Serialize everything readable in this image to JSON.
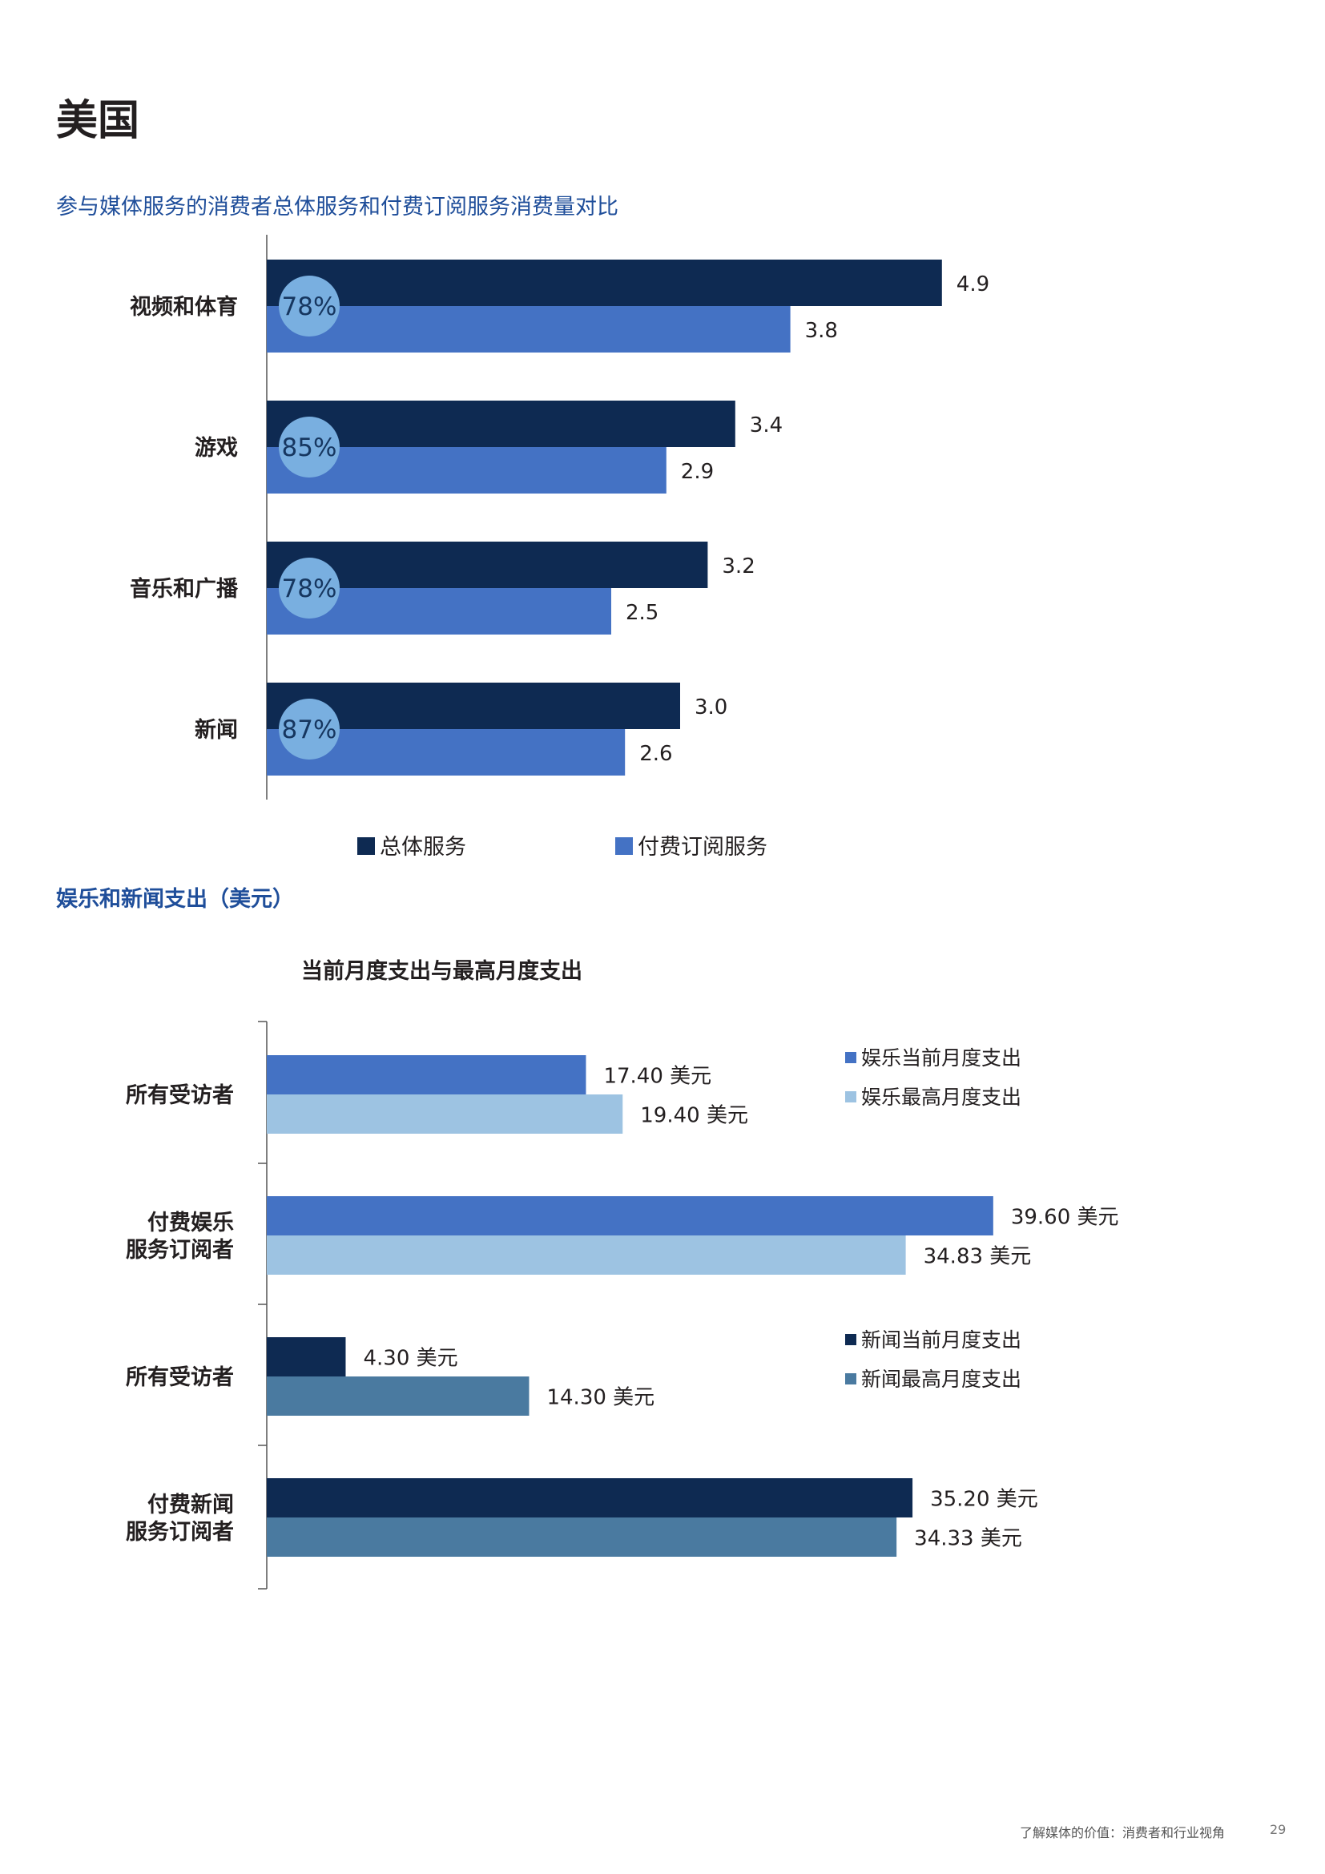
{
  "page": {
    "title": "美国",
    "footer": "了解媒体的价值：消费者和行业视角",
    "page_number": "29"
  },
  "chart1": {
    "section_title": "参与媒体服务的消费者总体服务和付费订阅服务消费量对比"
  },
  "chart2": {
    "section_title": "娱乐和新闻支出（美元）",
    "subtitle": "当前月度支出与最高月度支出"
  },
  "chart_data": [
    {
      "type": "bar",
      "orientation": "horizontal",
      "title": "参与媒体服务的消费者总体服务和付费订阅服务消费量对比",
      "categories": [
        "视频和体育",
        "游戏",
        "音乐和广播",
        "新闻"
      ],
      "series": [
        {
          "name": "总体服务",
          "values": [
            4.9,
            3.4,
            3.2,
            3.0
          ],
          "labels": [
            "4.9",
            "3.4",
            "3.2",
            "3.0"
          ],
          "color": "#0e2a52"
        },
        {
          "name": "付费订阅服务",
          "values": [
            3.8,
            2.9,
            2.5,
            2.6
          ],
          "labels": [
            "3.8",
            "2.9",
            "2.5",
            "2.6"
          ],
          "color": "#4472c4"
        }
      ],
      "annotations": [
        "78%",
        "85%",
        "78%",
        "87%"
      ],
      "annotation_color": "#79afe0",
      "xlim": [
        0,
        5
      ],
      "legend": [
        "总体服务",
        "付费订阅服务"
      ],
      "legend_position": "bottom"
    },
    {
      "type": "bar",
      "orientation": "horizontal",
      "title": "当前月度支出与最高月度支出",
      "groups": [
        {
          "label": [
            "所有受访者"
          ],
          "bars": [
            {
              "value": 17.4,
              "label": "17.40 美元",
              "color": "#4472c4"
            },
            {
              "value": 19.4,
              "label": "19.40 美元",
              "color": "#9dc3e2"
            }
          ]
        },
        {
          "label": [
            "付费娱乐",
            "服务订阅者"
          ],
          "bars": [
            {
              "value": 39.6,
              "label": "39.60 美元",
              "color": "#4472c4"
            },
            {
              "value": 34.83,
              "label": "34.83 美元",
              "color": "#9dc3e2"
            }
          ]
        },
        {
          "label": [
            "所有受访者"
          ],
          "bars": [
            {
              "value": 4.3,
              "label": "4.30 美元",
              "color": "#0e2a52"
            },
            {
              "value": 14.3,
              "label": "14.30 美元",
              "color": "#4a7aa0"
            }
          ]
        },
        {
          "label": [
            "付费新闻",
            "服务订阅者"
          ],
          "bars": [
            {
              "value": 35.2,
              "label": "35.20 美元",
              "color": "#0e2a52"
            },
            {
              "value": 34.33,
              "label": "34.33 美元",
              "color": "#4a7aa0"
            }
          ]
        }
      ],
      "legend_entertainment": [
        {
          "name": "娱乐当前月度支出",
          "color": "#4472c4"
        },
        {
          "name": "娱乐最高月度支出",
          "color": "#9dc3e2"
        }
      ],
      "legend_news": [
        {
          "name": "新闻当前月度支出",
          "color": "#0e2a52"
        },
        {
          "name": "新闻最高月度支出",
          "color": "#4a7aa0"
        }
      ],
      "xlim": [
        0,
        40
      ]
    }
  ]
}
